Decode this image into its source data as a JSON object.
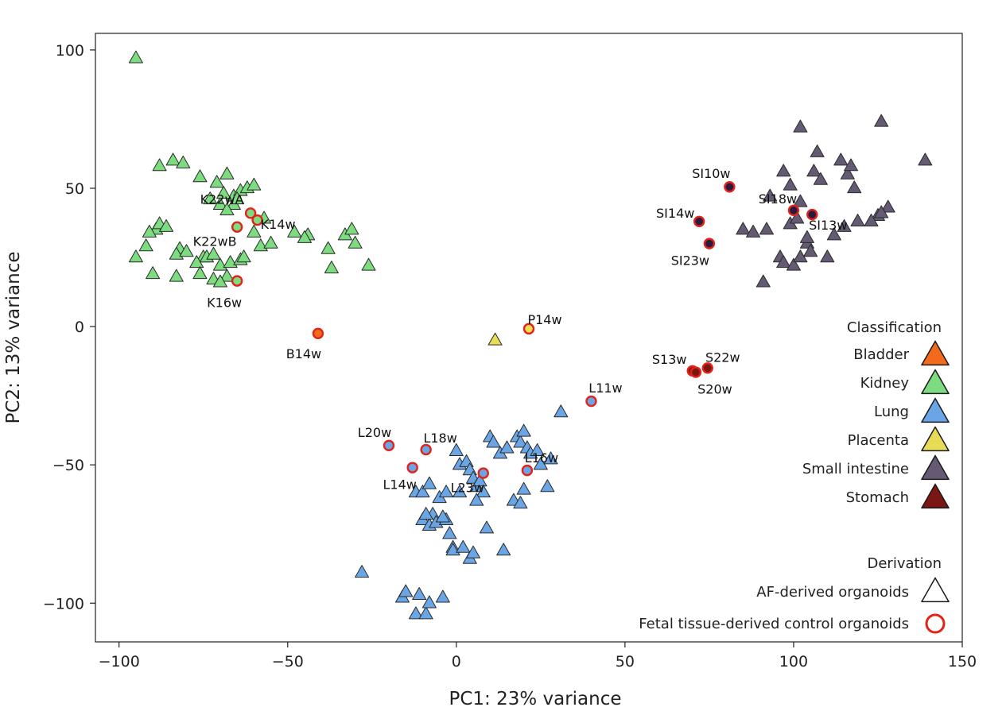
{
  "chart_data": {
    "type": "scatter",
    "title": "",
    "xlabel": "PC1: 23% variance",
    "ylabel": "PC2: 13% variance",
    "xlim": [
      -107,
      150
    ],
    "ylim": [
      -114,
      106
    ],
    "xticks": [
      -100,
      -50,
      0,
      50,
      100,
      150
    ],
    "yticks": [
      100,
      50,
      0,
      -50,
      -100
    ],
    "xtick_labels": [
      "−100",
      "−50",
      "0",
      "50",
      "100",
      "150"
    ],
    "ytick_labels": [
      "100",
      "50",
      "0",
      "−50",
      "−100"
    ],
    "colors": {
      "Bladder": "#f26a1b",
      "Kidney": "#7ddc7f",
      "Lung": "#6aa6e6",
      "Placenta": "#e6dc55",
      "Small intestine": "#655a73",
      "Stomach": "#7a1712"
    },
    "control_colors": {
      "Bladder": "#f26a1b",
      "Kidney": "#7ddc7f",
      "Lung": "#6aa6e6",
      "Placenta": "#f0e050",
      "Small intestine": "#2b1a40",
      "Stomach": "#7a1712"
    },
    "control_ring_color": "#e2231a",
    "series": [
      {
        "name": "Kidney",
        "derivation": "AF-derived organoids",
        "marker": "triangle",
        "x": [
          -95,
          -88,
          -84,
          -81,
          -76,
          -68,
          -71,
          -66,
          -64,
          -62,
          -60,
          -66,
          -73,
          -70,
          -68,
          -75,
          -82,
          -89,
          -91,
          -95,
          -92,
          -88,
          -86,
          -83,
          -80,
          -77,
          -74,
          -72,
          -70,
          -67,
          -64,
          -58,
          -60,
          -57,
          -68,
          -72,
          -83,
          -90,
          -76,
          -70,
          -63,
          -55,
          -48,
          -44,
          -38,
          -37,
          -33,
          -31,
          -30,
          -26,
          -45,
          -69,
          -65
        ],
        "y": [
          97,
          58,
          60,
          59,
          54,
          55,
          52,
          47,
          49,
          50,
          51,
          44,
          46,
          44,
          42,
          25,
          28,
          35,
          34,
          25,
          29,
          37,
          36,
          26,
          27,
          23,
          25,
          26,
          22,
          23,
          24,
          29,
          34,
          39,
          18,
          17,
          18,
          19,
          19,
          16,
          25,
          30,
          34,
          33,
          28,
          21,
          33,
          35,
          30,
          22,
          32,
          48,
          46
        ]
      },
      {
        "name": "Lung",
        "derivation": "AF-derived organoids",
        "marker": "triangle",
        "x": [
          -28,
          -16,
          -15,
          -12,
          -11,
          -9,
          -8,
          -4,
          -2,
          -1,
          0,
          1,
          3,
          4,
          5,
          6,
          7,
          8,
          10,
          11,
          13,
          15,
          18,
          19,
          20,
          21,
          22,
          24,
          25,
          27,
          28,
          31,
          -10,
          -8,
          -7,
          -6,
          -3,
          -1,
          2,
          4,
          5,
          9,
          14,
          17,
          19,
          -12,
          -10,
          -8,
          -5,
          -3,
          1,
          6,
          -9,
          -4,
          20
        ],
        "y": [
          -89,
          -98,
          -96,
          -104,
          -97,
          -104,
          -100,
          -98,
          -75,
          -80,
          -45,
          -50,
          -49,
          -52,
          -55,
          -58,
          -56,
          -60,
          -40,
          -42,
          -46,
          -44,
          -40,
          -42,
          -38,
          -44,
          -46,
          -45,
          -50,
          -58,
          -48,
          -31,
          -70,
          -72,
          -68,
          -71,
          -70,
          -81,
          -80,
          -84,
          -82,
          -73,
          -81,
          -63,
          -64,
          -60,
          -60,
          -57,
          -62,
          -60,
          -60,
          -63,
          -68,
          -69,
          -59
        ]
      },
      {
        "name": "Placenta",
        "derivation": "AF-derived organoids",
        "marker": "triangle",
        "x": [
          11.5
        ],
        "y": [
          -5
        ]
      },
      {
        "name": "Small intestine",
        "derivation": "AF-derived organoids",
        "marker": "triangle",
        "x": [
          102,
          126,
          139,
          107,
          114,
          116,
          117,
          125,
          128,
          118,
          97,
          93,
          99,
          102,
          106,
          108,
          92,
          85,
          88,
          96,
          104,
          110,
          112,
          115,
          119,
          123,
          126,
          91,
          97,
          100,
          102,
          105,
          99,
          101,
          104
        ],
        "y": [
          72,
          74,
          60,
          63,
          60,
          55,
          58,
          40,
          43,
          50,
          56,
          47,
          51,
          45,
          56,
          53,
          35,
          35,
          34,
          25,
          30,
          25,
          33,
          36,
          38,
          38,
          41,
          16,
          23,
          22,
          25,
          27,
          37,
          39,
          32
        ]
      },
      {
        "name": "Kidney",
        "derivation": "Fetal tissue-derived control organoids",
        "marker": "circle",
        "x": [
          -61,
          -59,
          -65,
          -65
        ],
        "y": [
          41,
          38.5,
          36,
          16.5
        ],
        "labels": [
          "K22wA",
          "K14w",
          "K22wB",
          "K16w"
        ]
      },
      {
        "name": "Bladder",
        "derivation": "Fetal tissue-derived control organoids",
        "marker": "circle",
        "x": [
          -41
        ],
        "y": [
          -2.5
        ],
        "labels": [
          "B14w"
        ]
      },
      {
        "name": "Placenta",
        "derivation": "Fetal tissue-derived control organoids",
        "marker": "circle",
        "x": [
          21.5
        ],
        "y": [
          -0.8
        ],
        "labels": [
          "P14w"
        ]
      },
      {
        "name": "Lung",
        "derivation": "Fetal tissue-derived control organoids",
        "marker": "circle",
        "x": [
          40,
          -20,
          -13,
          -9,
          8,
          21
        ],
        "y": [
          -27,
          -43,
          -51,
          -44.5,
          -53,
          -52
        ],
        "labels": [
          "L11w",
          "L20w",
          "L14w",
          "L18w",
          "L23w",
          "L16w"
        ]
      },
      {
        "name": "Stomach",
        "derivation": "Fetal tissue-derived control organoids",
        "marker": "circle",
        "x": [
          70,
          74.5,
          71
        ],
        "y": [
          -16,
          -15,
          -16.5
        ],
        "labels": [
          "S13w",
          "S22w",
          "S20w"
        ]
      },
      {
        "name": "Small intestine",
        "derivation": "Fetal tissue-derived control organoids",
        "marker": "circle",
        "x": [
          81,
          72,
          100,
          105.5,
          75
        ],
        "y": [
          50.5,
          38,
          42,
          40.5,
          30
        ],
        "labels": [
          "SI10w",
          "SI14w",
          "SI18w",
          "SI13w",
          "SI23w"
        ]
      }
    ],
    "point_labels": [
      "K22wA",
      "K14w",
      "K22wB",
      "K16w",
      "B14w",
      "P14w",
      "L11w",
      "L20w",
      "L14w",
      "L18w",
      "L23w",
      "L16w",
      "S13w",
      "S22w",
      "S20w",
      "SI10w",
      "SI14w",
      "SI18w",
      "SI13w",
      "SI23w"
    ],
    "legend": {
      "classification_title": "Classification",
      "classification_items": [
        "Bladder",
        "Kidney",
        "Lung",
        "Placenta",
        "Small intestine",
        "Stomach"
      ],
      "derivation_title": "Derivation",
      "derivation_items": [
        "AF-derived organoids",
        "Fetal tissue-derived control organoids"
      ],
      "placement": "right"
    },
    "grid": false
  }
}
